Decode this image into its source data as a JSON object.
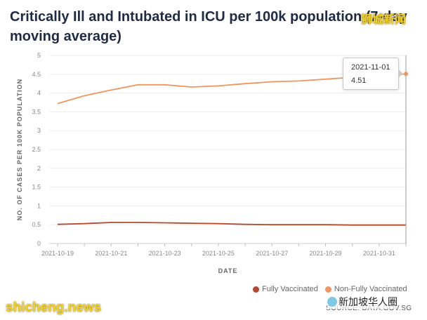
{
  "chart_data": {
    "type": "line",
    "title": "Critically Ill and Intubated in ICU per 100k population (7-day moving average)",
    "xlabel": "DATE",
    "ylabel": "NO. OF CASES PER 100K POPULATION",
    "ylim": [
      0,
      5
    ],
    "yticks": [
      "0",
      "0.5",
      "1",
      "1.5",
      "2",
      "2.5",
      "3",
      "3.5",
      "4",
      "4.5",
      "5"
    ],
    "x_dates": [
      "2021-10-19",
      "2021-10-20",
      "2021-10-21",
      "2021-10-22",
      "2021-10-23",
      "2021-10-24",
      "2021-10-25",
      "2021-10-26",
      "2021-10-27",
      "2021-10-28",
      "2021-10-29",
      "2021-10-30",
      "2021-10-31",
      "2021-11-01"
    ],
    "xtick_labels": [
      "2021-10-19",
      "2021-10-21",
      "2021-10-23",
      "2021-10-25",
      "2021-10-27",
      "2021-10-29",
      "2021-10-31"
    ],
    "series": [
      {
        "name": "Fully Vaccinated",
        "color": "#b5472b",
        "values": [
          0.51,
          0.53,
          0.56,
          0.56,
          0.55,
          0.54,
          0.53,
          0.51,
          0.5,
          0.5,
          0.5,
          0.49,
          0.49,
          0.49
        ]
      },
      {
        "name": "Non-Fully Vaccinated",
        "color": "#f0955e",
        "values": [
          3.72,
          3.93,
          4.08,
          4.22,
          4.22,
          4.16,
          4.19,
          4.25,
          4.3,
          4.32,
          4.37,
          4.42,
          4.45,
          4.51
        ]
      }
    ],
    "tooltip": {
      "date": "2021-11-01",
      "value": "4.51"
    },
    "legend_position": "bottom-right",
    "source": "SOURCE: DATA.GOV.SG"
  },
  "watermarks": {
    "top_right": "狮城新闻",
    "bottom_left": "shicheng.news",
    "bottom_right": "新加坡华人圈"
  }
}
